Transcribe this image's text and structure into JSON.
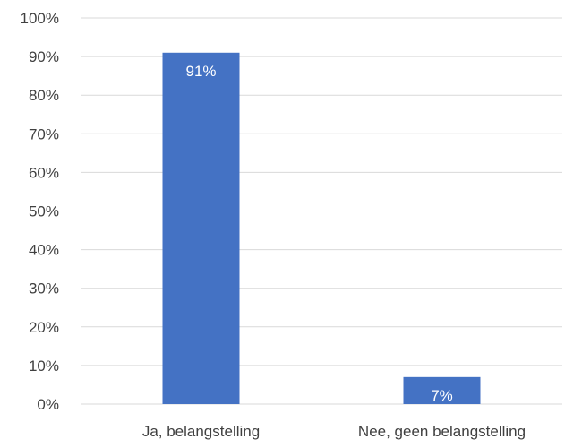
{
  "chart_data": {
    "type": "bar",
    "title": "",
    "xlabel": "",
    "ylabel": "",
    "categories": [
      "Ja, belangstelling",
      "Nee, geen belangstelling"
    ],
    "values": [
      91,
      7
    ],
    "data_labels": [
      "91%",
      "7%"
    ],
    "ylim": [
      0,
      100
    ],
    "yticks": [
      0,
      10,
      20,
      30,
      40,
      50,
      60,
      70,
      80,
      90,
      100
    ],
    "ytick_labels": [
      "0%",
      "10%",
      "20%",
      "30%",
      "40%",
      "50%",
      "60%",
      "70%",
      "80%",
      "90%",
      "100%"
    ],
    "grid": true,
    "legend": "none",
    "colors": {
      "bar": "#4472C4",
      "grid": "#D9D9D9",
      "axis_text": "#404040",
      "data_label": "#FFFFFF"
    }
  }
}
